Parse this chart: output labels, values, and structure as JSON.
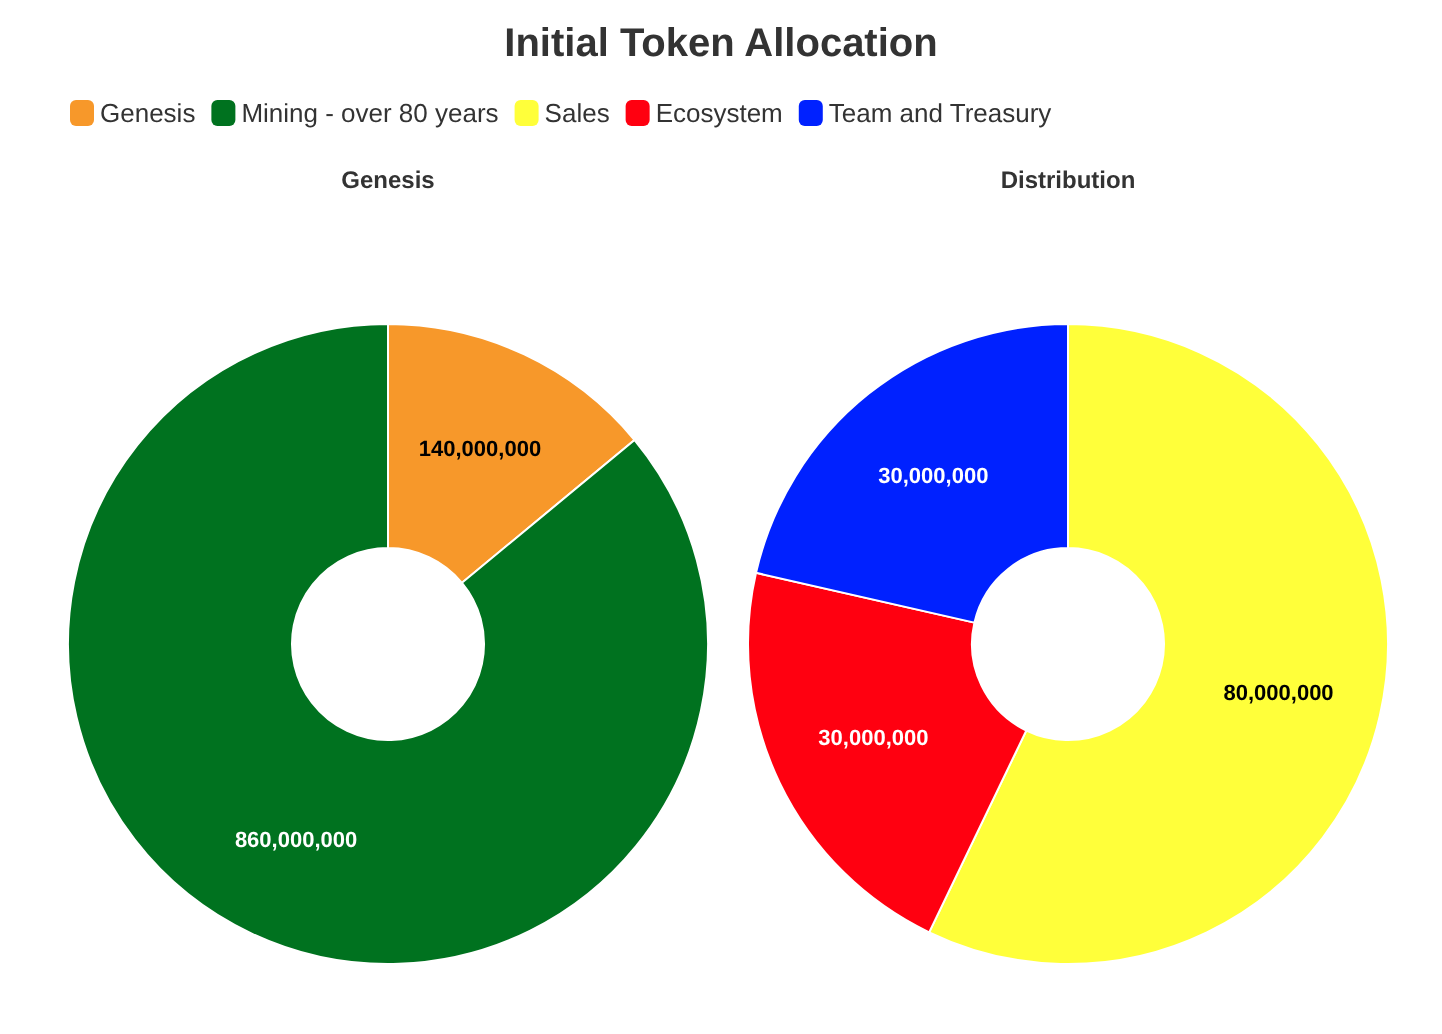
{
  "chart_data": [
    {
      "type": "other",
      "title": "Initial Token Allocation"
    },
    {
      "type": "donut",
      "title": "Genesis",
      "categories": [
        "Genesis",
        "Mining - over 80 years"
      ],
      "values": [
        140000000,
        860000000
      ],
      "colors": [
        "#f7982a",
        "#00721f"
      ],
      "value_labels": [
        "140,000,000",
        "860,000,000"
      ],
      "legend": "top left"
    },
    {
      "type": "donut",
      "title": "Distribution",
      "categories": [
        "Sales",
        "Ecosystem",
        "Team and Treasury"
      ],
      "values": [
        80000000,
        30000000,
        30000000
      ],
      "colors": [
        "#ffff3a",
        "#ff0010",
        "#0021ff"
      ],
      "value_labels": [
        "80,000,000",
        "30,000,000",
        "30,000,000"
      ],
      "legend": "top left"
    }
  ]
}
